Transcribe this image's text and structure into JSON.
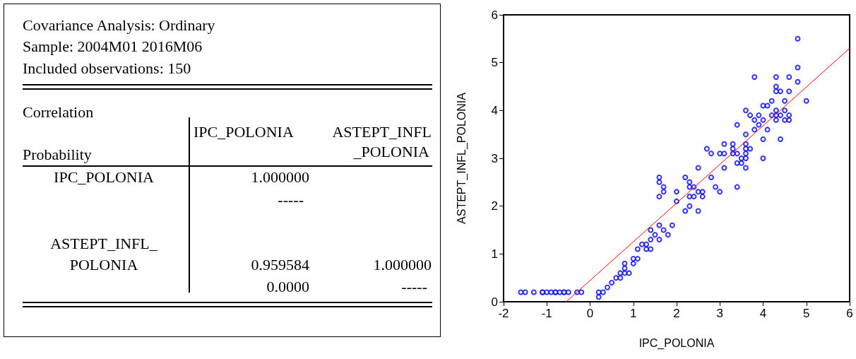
{
  "chart_data": [
    {
      "type": "other",
      "title": "Covariance Analysis: Ordinary",
      "subtitle": "Sample: 2004M01 2016M06",
      "annotations": [
        "Included observations: 150",
        "Correlation",
        "Probability",
        "IPC_POLONIA",
        "ASTEPT_INFL",
        "_POLONIA",
        "IPC_POLONIA",
        "1.000000",
        "-----",
        "ASTEPT_INFL_",
        "POLONIA",
        "0.959584",
        "1.000000",
        "0.0000",
        "-----"
      ]
    },
    {
      "type": "scatter",
      "xlabel": "IPC_POLONIA",
      "ylabel": "ASTEPT_INFL_POLONIA",
      "xlim": [
        -2,
        6
      ],
      "xticks": [
        -2,
        -1,
        0,
        1,
        2,
        3,
        4,
        5,
        6
      ],
      "ylim": [
        0,
        6
      ],
      "yticks": [
        0,
        1,
        2,
        3,
        4,
        5,
        6
      ],
      "series": [
        {
          "type": "scatter",
          "color": "#0000ff",
          "marker": "circle",
          "x": [
            -1.6,
            -1.5,
            -1.3,
            -1.1,
            -1.1,
            -1.0,
            -0.9,
            -0.8,
            -0.8,
            -0.7,
            -0.6,
            -0.6,
            -0.5,
            -0.3,
            -0.2,
            0.2,
            0.3,
            0.2,
            0.4,
            0.5,
            0.6,
            0.7,
            0.7,
            0.8,
            0.9,
            0.8,
            0.8,
            1.0,
            1.0,
            1.1,
            1.1,
            1.2,
            1.3,
            1.3,
            1.4,
            1.4,
            1.4,
            1.5,
            1.6,
            1.6,
            1.7,
            1.8,
            1.9,
            1.6,
            1.6,
            1.6,
            1.7,
            1.7,
            2.0,
            2.0,
            2.2,
            2.2,
            2.3,
            2.3,
            2.4,
            2.3,
            2.4,
            2.3,
            2.5,
            2.6,
            2.6,
            2.5,
            2.8,
            2.9,
            3.0,
            3.4,
            4.8,
            4.8,
            4.8,
            3.8,
            4.3,
            4.6,
            4.3,
            4.3,
            4.4,
            4.6,
            5.0,
            4.2,
            4.5,
            4.0,
            4.1,
            3.6,
            4.3,
            4.5,
            3.7,
            3.9,
            4.2,
            4.3,
            4.4,
            4.6,
            3.8,
            4.0,
            4.3,
            4.5,
            4.6,
            3.4,
            3.9,
            3.8,
            4.1,
            3.6,
            4.0,
            4.4,
            3.1,
            3.3,
            3.6,
            2.7,
            3.3,
            3.6,
            3.7,
            2.8,
            3.0,
            3.1,
            3.3,
            3.4,
            3.6,
            3.5,
            3.6,
            4.0,
            3.4,
            3.5,
            2.5,
            3.1,
            3.6
          ],
          "values": [
            0.2,
            0.2,
            0.2,
            0.2,
            0.2,
            0.2,
            0.2,
            0.2,
            0.2,
            0.2,
            0.2,
            0.2,
            0.2,
            0.2,
            0.2,
            0.2,
            0.2,
            0.1,
            0.3,
            0.4,
            0.5,
            0.5,
            0.6,
            0.6,
            0.6,
            0.7,
            0.8,
            0.8,
            0.9,
            0.9,
            1.1,
            1.2,
            1.2,
            1.1,
            1.1,
            1.3,
            1.5,
            1.4,
            1.3,
            1.6,
            1.5,
            1.4,
            1.6,
            2.2,
            2.5,
            2.6,
            2.4,
            2.3,
            2.3,
            2.1,
            2.6,
            1.9,
            2.5,
            2.4,
            2.4,
            2.2,
            2.2,
            2.0,
            2.3,
            2.3,
            2.2,
            1.9,
            2.6,
            2.4,
            2.3,
            2.4,
            5.5,
            4.9,
            4.6,
            4.7,
            4.7,
            4.7,
            4.5,
            4.4,
            4.4,
            4.4,
            4.2,
            4.2,
            4.2,
            4.1,
            4.1,
            4.0,
            4.0,
            4.0,
            3.9,
            3.9,
            3.9,
            3.9,
            3.9,
            3.9,
            3.8,
            3.8,
            3.8,
            3.8,
            3.8,
            3.7,
            3.7,
            3.6,
            3.6,
            3.5,
            3.4,
            3.4,
            3.3,
            3.3,
            3.3,
            3.2,
            3.2,
            3.2,
            3.2,
            3.1,
            3.1,
            3.1,
            3.1,
            3.1,
            3.1,
            3.0,
            3.0,
            3.0,
            2.9,
            2.9,
            2.8,
            2.8,
            2.8
          ]
        },
        {
          "type": "line",
          "color": "#ff0000",
          "marker": "none",
          "x": [
            -0.55,
            6
          ],
          "values": [
            0,
            5.3
          ]
        }
      ]
    }
  ]
}
